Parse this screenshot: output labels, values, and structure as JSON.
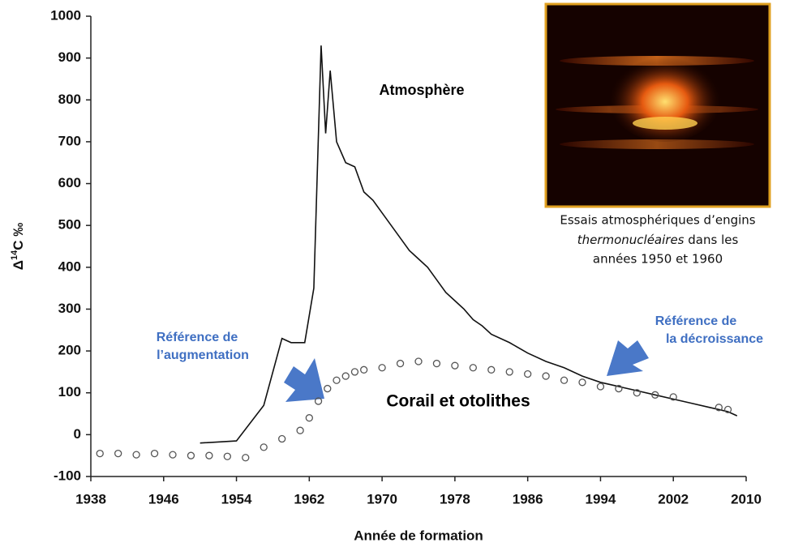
{
  "chart_data": {
    "type": "line",
    "xlabel": "Année de formation",
    "ylabel": {
      "base": "Δ",
      "sup": "14",
      "rest": "C ‰"
    },
    "xlim": [
      1938,
      2010
    ],
    "xticks": [
      1938,
      1946,
      1954,
      1962,
      1970,
      1978,
      1986,
      1994,
      2002,
      2010
    ],
    "ylim": [
      -100,
      1000
    ],
    "yticks": [
      -100,
      0,
      100,
      200,
      300,
      400,
      500,
      600,
      700,
      800,
      900,
      1000
    ],
    "series": [
      {
        "name": "Atmosphère",
        "type": "line",
        "color": "#111111",
        "x": [
          1950,
          1954,
          1957,
          1959,
          1960,
          1961.5,
          1962.5,
          1963.3,
          1963.8,
          1964.3,
          1965,
          1966,
          1967,
          1968,
          1969,
          1970,
          1971,
          1972,
          1973,
          1974,
          1975,
          1976,
          1977,
          1978,
          1979,
          1980,
          1981,
          1982,
          1984,
          1986,
          1988,
          1990,
          1992,
          1994,
          1996,
          1998,
          2000,
          2002,
          2004,
          2006,
          2008,
          2009
        ],
        "values": [
          -20,
          -15,
          70,
          230,
          220,
          220,
          350,
          930,
          720,
          870,
          700,
          650,
          640,
          580,
          560,
          530,
          500,
          470,
          440,
          420,
          400,
          370,
          340,
          320,
          300,
          275,
          260,
          240,
          220,
          195,
          175,
          160,
          140,
          125,
          115,
          105,
          95,
          85,
          75,
          65,
          55,
          45
        ]
      },
      {
        "name": "Corail et otolithes",
        "type": "scatter",
        "color": "#555555",
        "x": [
          1939,
          1941,
          1943,
          1945,
          1947,
          1949,
          1951,
          1953,
          1955,
          1957,
          1959,
          1961,
          1962,
          1963,
          1964,
          1965,
          1966,
          1967,
          1968,
          1970,
          1972,
          1974,
          1976,
          1978,
          1980,
          1982,
          1984,
          1986,
          1988,
          1990,
          1992,
          1994,
          1996,
          1998,
          2000,
          2002,
          2007,
          2008
        ],
        "values": [
          -45,
          -45,
          -48,
          -45,
          -48,
          -50,
          -50,
          -52,
          -55,
          -30,
          -10,
          10,
          40,
          80,
          110,
          130,
          140,
          150,
          155,
          160,
          170,
          175,
          170,
          165,
          160,
          155,
          150,
          145,
          140,
          130,
          125,
          115,
          110,
          100,
          95,
          90,
          65,
          60
        ]
      }
    ],
    "annotations": [
      {
        "lines": [
          "Référence de",
          "l’augmentation"
        ]
      },
      {
        "lines": [
          "Référence de",
          "la décroissance"
        ]
      }
    ],
    "caption": [
      "Essais atmosphériques d’engins",
      "thermonucléaires",
      "dans les",
      "années 1950 et 1960"
    ]
  }
}
